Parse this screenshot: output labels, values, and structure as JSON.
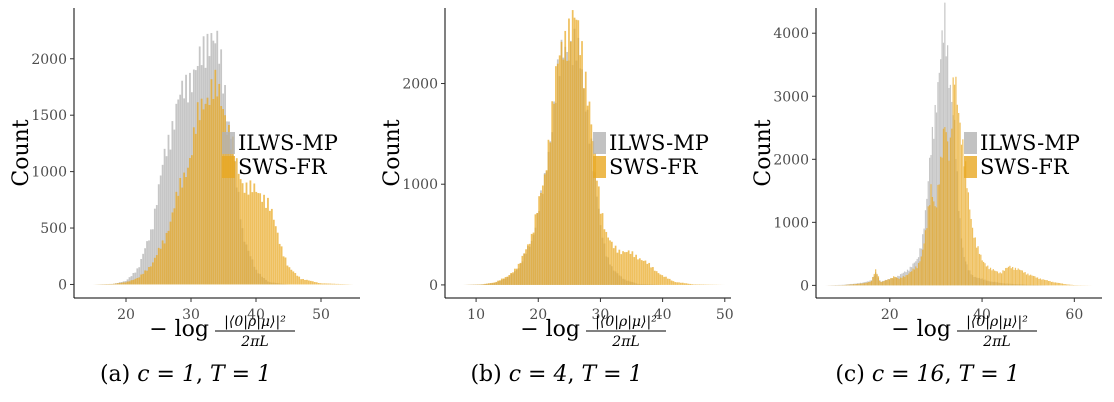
{
  "colors": {
    "ilws": "#b3b3b3",
    "sws": "#e9a820",
    "axis": "#000000",
    "tick_text": "#4d4d4d"
  },
  "chart_data": [
    {
      "type": "histogram",
      "caption": "(a) c = 1, T = 1",
      "caption_parts": {
        "prefix": "(a) ",
        "c": "c = 1",
        "sep": ", ",
        "T": "T = 1"
      },
      "ylabel": "Count",
      "xlabel": {
        "prefix": "− log",
        "numerator": "|⟨0|ρ|μ⟩|²",
        "denominator": "2πL"
      },
      "xlim": [
        12,
        56
      ],
      "ylim": [
        -120,
        2450
      ],
      "xticks": [
        20,
        30,
        40,
        50
      ],
      "yticks": [
        0,
        500,
        1000,
        1500,
        2000
      ],
      "legend": {
        "position": "right",
        "entries": [
          "ILWS-MP",
          "SWS-FR"
        ]
      },
      "series": [
        {
          "name": "ILWS-MP",
          "color": "#b3b3b3",
          "points": [
            [
              15,
              0
            ],
            [
              18,
              5
            ],
            [
              20,
              30
            ],
            [
              22,
              150
            ],
            [
              24,
              500
            ],
            [
              26,
              1150
            ],
            [
              28,
              1600
            ],
            [
              30,
              1850
            ],
            [
              31,
              1900
            ],
            [
              32,
              2050
            ],
            [
              33,
              2250
            ],
            [
              34,
              2100
            ],
            [
              35,
              1800
            ],
            [
              36,
              1400
            ],
            [
              37,
              900
            ],
            [
              38,
              450
            ],
            [
              40,
              120
            ],
            [
              42,
              20
            ],
            [
              45,
              0
            ],
            [
              55,
              0
            ]
          ]
        },
        {
          "name": "SWS-FR",
          "color": "#e9a820",
          "points": [
            [
              15,
              0
            ],
            [
              18,
              5
            ],
            [
              20,
              20
            ],
            [
              22,
              60
            ],
            [
              24,
              180
            ],
            [
              26,
              400
            ],
            [
              28,
              800
            ],
            [
              30,
              1150
            ],
            [
              31,
              1450
            ],
            [
              32,
              1650
            ],
            [
              33,
              1700
            ],
            [
              34,
              1720
            ],
            [
              35,
              1600
            ],
            [
              36,
              1300
            ],
            [
              37,
              1050
            ],
            [
              38,
              900
            ],
            [
              39,
              850
            ],
            [
              40,
              820
            ],
            [
              41,
              800
            ],
            [
              42,
              700
            ],
            [
              43,
              520
            ],
            [
              44,
              320
            ],
            [
              45,
              150
            ],
            [
              47,
              50
            ],
            [
              50,
              10
            ],
            [
              55,
              0
            ]
          ]
        }
      ]
    },
    {
      "type": "histogram",
      "caption": "(b) c = 4, T = 1",
      "caption_parts": {
        "prefix": "(b) ",
        "c": "c = 4",
        "sep": ", ",
        "T": "T = 1"
      },
      "ylabel": "Count",
      "xlabel": {
        "prefix": "− log",
        "numerator": "|⟨0|ρ|μ⟩|²",
        "denominator": "2πL"
      },
      "xlim": [
        5,
        51
      ],
      "ylim": [
        -130,
        2750
      ],
      "xticks": [
        10,
        20,
        30,
        40,
        50
      ],
      "yticks": [
        0,
        1000,
        2000
      ],
      "legend": {
        "position": "right",
        "entries": [
          "ILWS-MP",
          "SWS-FR"
        ]
      },
      "series": [
        {
          "name": "ILWS-MP",
          "color": "#b3b3b3",
          "points": [
            [
              8,
              0
            ],
            [
              11,
              5
            ],
            [
              13,
              20
            ],
            [
              15,
              70
            ],
            [
              17,
              180
            ],
            [
              19,
              450
            ],
            [
              21,
              1000
            ],
            [
              22,
              1500
            ],
            [
              23,
              2000
            ],
            [
              24,
              2300
            ],
            [
              25,
              2400
            ],
            [
              26,
              2350
            ],
            [
              27,
              2100
            ],
            [
              28,
              1700
            ],
            [
              29,
              1100
            ],
            [
              30,
              600
            ],
            [
              31,
              300
            ],
            [
              32,
              150
            ],
            [
              34,
              50
            ],
            [
              36,
              10
            ],
            [
              40,
              0
            ],
            [
              50,
              0
            ]
          ]
        },
        {
          "name": "SWS-FR",
          "color": "#e9a820",
          "points": [
            [
              8,
              0
            ],
            [
              11,
              5
            ],
            [
              13,
              25
            ],
            [
              15,
              80
            ],
            [
              17,
              200
            ],
            [
              19,
              500
            ],
            [
              21,
              1050
            ],
            [
              22,
              1600
            ],
            [
              23,
              2100
            ],
            [
              24,
              2400
            ],
            [
              25,
              2550
            ],
            [
              26,
              2600
            ],
            [
              27,
              2350
            ],
            [
              28,
              1900
            ],
            [
              29,
              1300
            ],
            [
              30,
              800
            ],
            [
              31,
              500
            ],
            [
              32,
              380
            ],
            [
              33,
              340
            ],
            [
              34,
              330
            ],
            [
              35,
              310
            ],
            [
              36,
              280
            ],
            [
              37,
              240
            ],
            [
              38,
              190
            ],
            [
              39,
              140
            ],
            [
              40,
              90
            ],
            [
              42,
              30
            ],
            [
              45,
              5
            ],
            [
              50,
              0
            ]
          ]
        }
      ]
    },
    {
      "type": "histogram",
      "caption": "(c) c = 16, T = 1",
      "caption_parts": {
        "prefix": "(c) ",
        "c": "c = 16",
        "sep": ", ",
        "T": "T = 1"
      },
      "ylabel": "Count",
      "xlabel": {
        "prefix": "− log",
        "numerator": "|⟨0|ρ|μ⟩|²",
        "denominator": "2πL"
      },
      "xlim": [
        4,
        66
      ],
      "ylim": [
        -200,
        4400
      ],
      "xticks": [
        20,
        40,
        60
      ],
      "yticks": [
        0,
        1000,
        2000,
        3000,
        4000
      ],
      "legend": {
        "position": "right",
        "entries": [
          "ILWS-MP",
          "SWS-FR"
        ]
      },
      "series": [
        {
          "name": "ILWS-MP",
          "color": "#b3b3b3",
          "points": [
            [
              6,
              0
            ],
            [
              10,
              10
            ],
            [
              14,
              40
            ],
            [
              16,
              80
            ],
            [
              17,
              200
            ],
            [
              18,
              60
            ],
            [
              20,
              100
            ],
            [
              22,
              150
            ],
            [
              24,
              250
            ],
            [
              26,
              400
            ],
            [
              27,
              700
            ],
            [
              28,
              1300
            ],
            [
              29,
              2200
            ],
            [
              30,
              2900
            ],
            [
              31,
              3500
            ],
            [
              32,
              4200
            ],
            [
              33,
              3300
            ],
            [
              34,
              2500
            ],
            [
              35,
              1200
            ],
            [
              36,
              500
            ],
            [
              37,
              250
            ],
            [
              38,
              150
            ],
            [
              40,
              100
            ],
            [
              42,
              60
            ],
            [
              45,
              30
            ],
            [
              50,
              10
            ],
            [
              55,
              0
            ],
            [
              64,
              0
            ]
          ]
        },
        {
          "name": "SWS-FR",
          "color": "#e9a820",
          "points": [
            [
              6,
              0
            ],
            [
              10,
              5
            ],
            [
              14,
              30
            ],
            [
              16,
              60
            ],
            [
              17,
              250
            ],
            [
              18,
              50
            ],
            [
              20,
              100
            ],
            [
              21,
              150
            ],
            [
              22,
              100
            ],
            [
              24,
              180
            ],
            [
              26,
              300
            ],
            [
              27,
              500
            ],
            [
              28,
              900
            ],
            [
              29,
              1600
            ],
            [
              30,
              1200
            ],
            [
              31,
              1800
            ],
            [
              32,
              2700
            ],
            [
              33,
              2000
            ],
            [
              34,
              3300
            ],
            [
              35,
              2800
            ],
            [
              36,
              2100
            ],
            [
              37,
              1400
            ],
            [
              38,
              900
            ],
            [
              39,
              600
            ],
            [
              40,
              400
            ],
            [
              42,
              250
            ],
            [
              44,
              200
            ],
            [
              46,
              300
            ],
            [
              48,
              250
            ],
            [
              50,
              180
            ],
            [
              52,
              120
            ],
            [
              55,
              60
            ],
            [
              58,
              20
            ],
            [
              60,
              5
            ],
            [
              64,
              0
            ]
          ]
        }
      ]
    }
  ]
}
